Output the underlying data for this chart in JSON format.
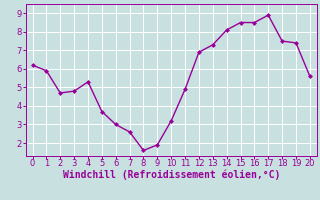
{
  "x": [
    0,
    1,
    2,
    3,
    4,
    5,
    6,
    7,
    8,
    9,
    10,
    11,
    12,
    13,
    14,
    15,
    16,
    17,
    18,
    19,
    20
  ],
  "y": [
    6.2,
    5.9,
    4.7,
    4.8,
    5.3,
    3.7,
    3.0,
    2.6,
    1.6,
    1.9,
    3.2,
    4.9,
    6.9,
    7.3,
    8.1,
    8.5,
    8.5,
    8.9,
    7.5,
    7.4,
    5.6
  ],
  "line_color": "#990099",
  "marker": "D",
  "marker_size": 2.0,
  "background_color": "#c8e0e0",
  "grid_color": "#ffffff",
  "xlabel": "Windchill (Refroidissement éolien,°C)",
  "xlabel_color": "#990099",
  "xlabel_fontsize": 7,
  "tick_color": "#990099",
  "tick_fontsize": 6,
  "ylim": [
    1.3,
    9.5
  ],
  "xlim": [
    -0.5,
    20.5
  ],
  "yticks": [
    2,
    3,
    4,
    5,
    6,
    7,
    8,
    9
  ],
  "xticks": [
    0,
    1,
    2,
    3,
    4,
    5,
    6,
    7,
    8,
    9,
    10,
    11,
    12,
    13,
    14,
    15,
    16,
    17,
    18,
    19,
    20
  ],
  "spine_color": "#990099",
  "linewidth": 1.0
}
